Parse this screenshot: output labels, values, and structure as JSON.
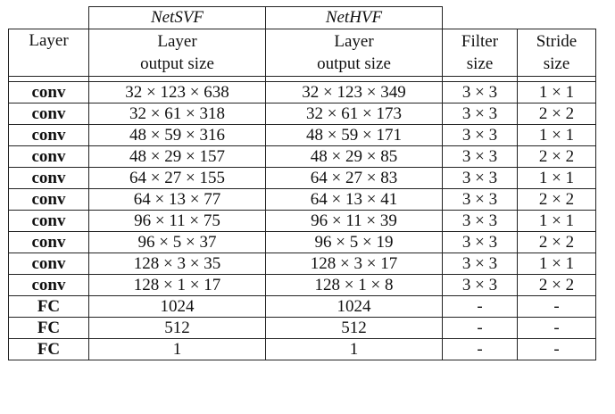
{
  "table": {
    "group_headers": [
      "NetSVF",
      "NetHVF"
    ],
    "col_headers": {
      "layer": "Layer",
      "svf": [
        "Layer",
        "output size"
      ],
      "hvf": [
        "Layer",
        "output size"
      ],
      "filter": [
        "Filter",
        "size"
      ],
      "stride": [
        "Stride",
        "size"
      ]
    },
    "rows": [
      {
        "layer": "conv",
        "svf": "32 × 123 × 638",
        "hvf": "32 × 123 × 349",
        "filter": "3 × 3",
        "stride": "1 × 1"
      },
      {
        "layer": "conv",
        "svf": "32 × 61 × 318",
        "hvf": "32 × 61 × 173",
        "filter": "3 × 3",
        "stride": "2 × 2"
      },
      {
        "layer": "conv",
        "svf": "48 × 59 × 316",
        "hvf": "48 × 59 × 171",
        "filter": "3 × 3",
        "stride": "1 × 1"
      },
      {
        "layer": "conv",
        "svf": "48 × 29 × 157",
        "hvf": "48 × 29 × 85",
        "filter": "3 × 3",
        "stride": "2 × 2"
      },
      {
        "layer": "conv",
        "svf": "64 × 27 × 155",
        "hvf": "64 × 27 × 83",
        "filter": "3 × 3",
        "stride": "1 × 1"
      },
      {
        "layer": "conv",
        "svf": "64 × 13 × 77",
        "hvf": "64 × 13 × 41",
        "filter": "3 × 3",
        "stride": "2 × 2"
      },
      {
        "layer": "conv",
        "svf": "96 × 11 × 75",
        "hvf": "96 × 11 × 39",
        "filter": "3 × 3",
        "stride": "1 × 1"
      },
      {
        "layer": "conv",
        "svf": "96 × 5 × 37",
        "hvf": "96 × 5 × 19",
        "filter": "3 × 3",
        "stride": "2 × 2"
      },
      {
        "layer": "conv",
        "svf": "128 × 3 × 35",
        "hvf": "128 × 3 × 17",
        "filter": "3 × 3",
        "stride": "1 × 1"
      },
      {
        "layer": "conv",
        "svf": "128 × 1 × 17",
        "hvf": "128 × 1 × 8",
        "filter": "3 × 3",
        "stride": "2 × 2"
      },
      {
        "layer": "FC",
        "svf": "1024",
        "hvf": "1024",
        "filter": "-",
        "stride": "-"
      },
      {
        "layer": "FC",
        "svf": "512",
        "hvf": "512",
        "filter": "-",
        "stride": "-"
      },
      {
        "layer": "FC",
        "svf": "1",
        "hvf": "1",
        "filter": "-",
        "stride": "-"
      }
    ]
  }
}
